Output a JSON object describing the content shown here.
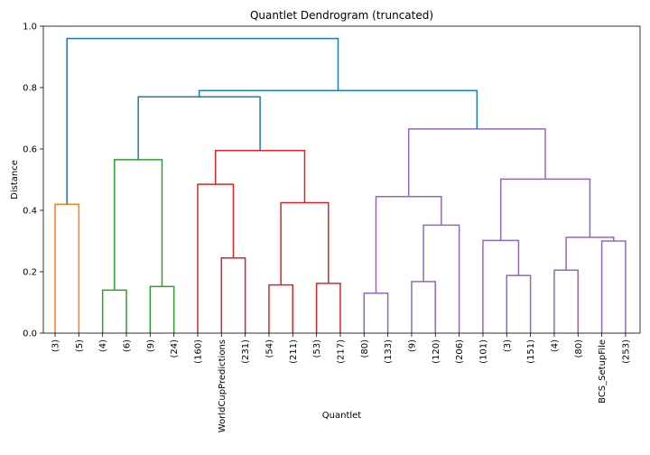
{
  "chart_data": {
    "type": "dendrogram",
    "title": "Quantlet Dendrogram (truncated)",
    "xlabel": "Quantlet",
    "ylabel": "Distance",
    "ylim": [
      0,
      1.0
    ],
    "yticks": [
      "0.0",
      "0.2",
      "0.4",
      "0.6",
      "0.8",
      "1.0"
    ],
    "grid": false,
    "leaves": [
      "(3)",
      "(5)",
      "(4)",
      "(6)",
      "(9)",
      "(24)",
      "(160)",
      "WorldCupPredictions",
      "(231)",
      "(54)",
      "(211)",
      "(53)",
      "(217)",
      "(80)",
      "(133)",
      "(9)",
      "(120)",
      "(206)",
      "(101)",
      "(3)",
      "(151)",
      "(4)",
      "(80)",
      "BCS_SetupFile",
      "(253)"
    ],
    "colors": {
      "orange": "#ff7f0e",
      "green": "#2ca02c",
      "red": "#d62728",
      "purple": "#9467bd",
      "blue": "#1f77b4"
    },
    "merges": [
      {
        "left": 0,
        "right": 1,
        "height": 0.42,
        "color": "orange"
      },
      {
        "left": 2,
        "right": 3,
        "height": 0.14,
        "color": "green"
      },
      {
        "left": 4,
        "right": 5,
        "height": 0.152,
        "color": "green"
      },
      {
        "left": 26,
        "right": 27,
        "height": 0.565,
        "color": "green"
      },
      {
        "left": 7,
        "right": 8,
        "height": 0.245,
        "color": "red"
      },
      {
        "left": 6,
        "right": 29,
        "height": 0.485,
        "color": "red"
      },
      {
        "left": 9,
        "right": 10,
        "height": 0.157,
        "color": "red"
      },
      {
        "left": 11,
        "right": 12,
        "height": 0.162,
        "color": "red"
      },
      {
        "left": 31,
        "right": 32,
        "height": 0.425,
        "color": "red"
      },
      {
        "left": 30,
        "right": 33,
        "height": 0.595,
        "color": "red"
      },
      {
        "left": 28,
        "right": 34,
        "height": 0.77,
        "color": "blue"
      },
      {
        "left": 13,
        "right": 14,
        "height": 0.13,
        "color": "purple"
      },
      {
        "left": 15,
        "right": 16,
        "height": 0.168,
        "color": "purple"
      },
      {
        "left": 37,
        "right": 17,
        "height": 0.352,
        "color": "purple"
      },
      {
        "left": 36,
        "right": 38,
        "height": 0.445,
        "color": "purple"
      },
      {
        "left": 19,
        "right": 20,
        "height": 0.188,
        "color": "purple"
      },
      {
        "left": 18,
        "right": 40,
        "height": 0.302,
        "color": "purple"
      },
      {
        "left": 21,
        "right": 22,
        "height": 0.205,
        "color": "purple"
      },
      {
        "left": 23,
        "right": 24,
        "height": 0.3,
        "color": "purple"
      },
      {
        "left": 42,
        "right": 43,
        "height": 0.312,
        "color": "purple"
      },
      {
        "left": 41,
        "right": 44,
        "height": 0.502,
        "color": "purple"
      },
      {
        "left": 39,
        "right": 45,
        "height": 0.665,
        "color": "purple"
      },
      {
        "left": 35,
        "right": 46,
        "height": 0.79,
        "color": "blue"
      },
      {
        "left": 25,
        "right": 47,
        "height": 0.96,
        "color": "blue"
      }
    ]
  }
}
